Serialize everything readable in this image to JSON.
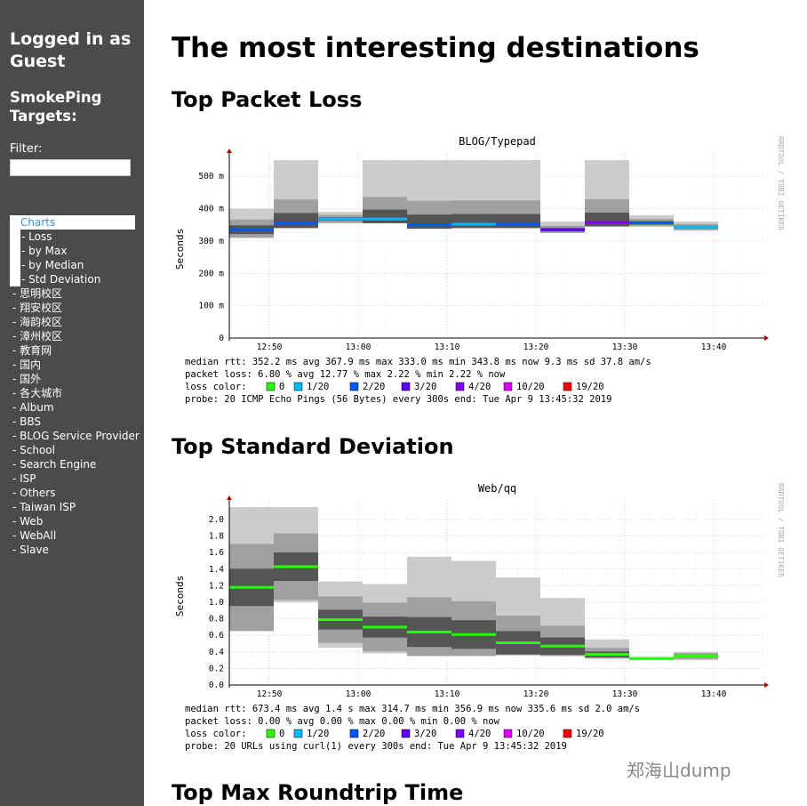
{
  "sidebar": {
    "user_status": "Logged in as Guest",
    "targets_heading": "SmokePing Targets:",
    "filter_label": "Filter:",
    "filter_value": "",
    "charts_label": "Charts",
    "chart_subitems": [
      "- Loss",
      "- by Max",
      "- by Median",
      "- Std Deviation"
    ],
    "items": [
      "- 思明校区",
      "- 翔安校区",
      "- 海韵校区",
      "- 漳州校区",
      "- 教育网",
      "- 国内",
      "- 国外",
      "- 各大城市",
      "- Album",
      "- BBS",
      "- BLOG Service Provider",
      "- School",
      "- Search Engine",
      "- ISP",
      "- Others",
      "- Taiwan ISP",
      "- Web",
      "- WebAll",
      "- Slave"
    ]
  },
  "main": {
    "title": "The most interesting destinations",
    "sections": [
      "Top Packet Loss",
      "Top Standard Deviation",
      "Top Max Roundtrip Time"
    ]
  },
  "watermark": "郑海山dump",
  "chart_data": [
    {
      "type": "line",
      "title": "BLOG/Typepad",
      "ylabel": "Seconds",
      "side_label": "RRDTOOL / TOBI OETIKER",
      "x": [
        "12:50",
        "13:00",
        "13:10",
        "13:20",
        "13:30",
        "13:40"
      ],
      "y_ticks": [
        "0",
        "100 m",
        "200 m",
        "300 m",
        "400 m",
        "500 m"
      ],
      "ylim": [
        0,
        550
      ],
      "median_ms": [
        335,
        355,
        368,
        368,
        350,
        352,
        352,
        335,
        357,
        356,
        343
      ],
      "min_ms": [
        310,
        340,
        355,
        355,
        338,
        340,
        340,
        325,
        345,
        345,
        333
      ],
      "max_ms": [
        400,
        550,
        390,
        550,
        550,
        550,
        550,
        360,
        550,
        380,
        360
      ],
      "loss_color_index": [
        2,
        2,
        1,
        1,
        2,
        1,
        2,
        3,
        4,
        2,
        1
      ],
      "stats": [
        "median rtt:  352.2 ms avg  367.9 ms max  333.0 ms min  343.8 ms now  9.3 ms sd  37.8   am/s",
        "packet loss: 6.80 % avg  12.77 % max  2.22 % min  2.22 % now",
        "probe:       20 ICMP Echo Pings (56 Bytes) every 300s              end: Tue Apr  9 13:45:32 2019"
      ]
    },
    {
      "type": "line",
      "title": "Web/qq",
      "ylabel": "Seconds",
      "side_label": "RRDTOOL / TOBI OETIKER",
      "x": [
        "12:50",
        "13:00",
        "13:10",
        "13:20",
        "13:30",
        "13:40"
      ],
      "y_ticks": [
        "0.0",
        "0.2",
        "0.4",
        "0.6",
        "0.8",
        "1.0",
        "1.2",
        "1.4",
        "1.6",
        "1.8",
        "2.0"
      ],
      "ylim": [
        0,
        2.15
      ],
      "median_s": [
        1.18,
        1.43,
        0.79,
        0.7,
        0.64,
        0.61,
        0.51,
        0.47,
        0.37,
        0.32,
        0.35
      ],
      "min_s": [
        0.65,
        1.0,
        0.45,
        0.38,
        0.35,
        0.35,
        0.36,
        0.35,
        0.32,
        0.3,
        0.3
      ],
      "max_s": [
        2.15,
        2.15,
        1.25,
        1.22,
        1.55,
        1.5,
        1.3,
        1.05,
        0.55,
        0.34,
        0.4
      ],
      "loss_color_index": [
        0,
        0,
        0,
        0,
        0,
        0,
        0,
        0,
        0,
        0,
        0
      ],
      "stats": [
        "median rtt:  673.4 ms avg  1.4  s max  314.7 ms min  356.9 ms now  335.6 ms sd  2.0    am/s",
        "packet loss: 0.00 % avg  0.00 % max  0.00 % min  0.00 % now",
        "probe:       20 URLs using curl(1) every 300s                      end: Tue Apr  9 13:45:32 2019"
      ]
    }
  ],
  "loss_legend": {
    "label": "loss color:",
    "entries": [
      {
        "label": "0",
        "color": "#26ff00"
      },
      {
        "label": "1/20",
        "color": "#00b8ff"
      },
      {
        "label": "2/20",
        "color": "#0059ff"
      },
      {
        "label": "3/20",
        "color": "#5e00ff"
      },
      {
        "label": "4/20",
        "color": "#7e00ff"
      },
      {
        "label": "10/20",
        "color": "#dd00ff"
      },
      {
        "label": "19/20",
        "color": "#ff0000"
      }
    ]
  }
}
